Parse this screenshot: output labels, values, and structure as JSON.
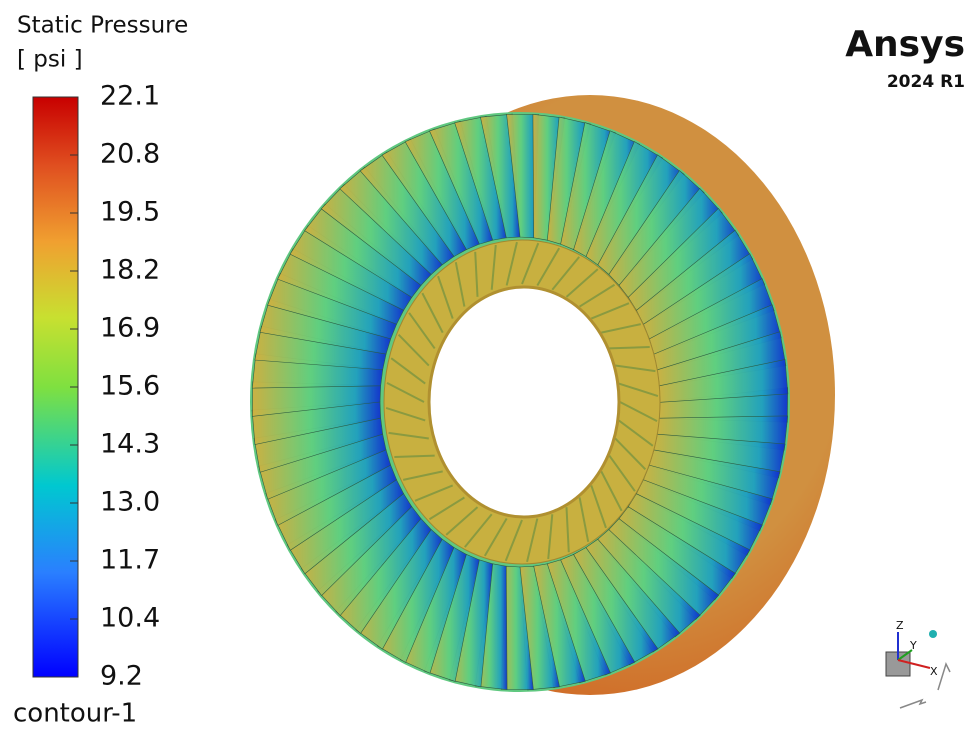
{
  "legend": {
    "title": "Static Pressure",
    "unit": "[ psi ]",
    "labels": [
      "22.1",
      "20.8",
      "19.5",
      "18.2",
      "16.9",
      "15.6",
      "14.3",
      "13.0",
      "11.7",
      "10.4",
      "9.2"
    ],
    "name": "contour-1"
  },
  "brand": {
    "name": "Ansys",
    "version": "2024 R1"
  },
  "triad": {
    "z": "Z",
    "y": "Y",
    "x": "X"
  }
}
